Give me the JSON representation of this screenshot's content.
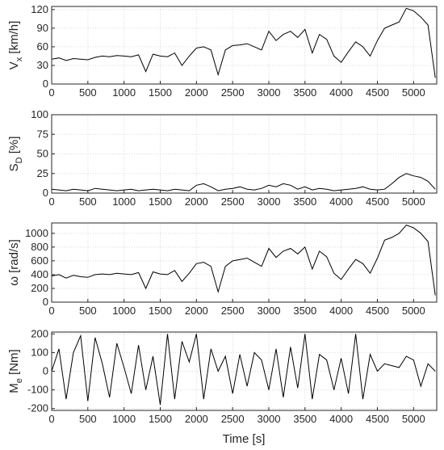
{
  "chart_data": {
    "type": "line",
    "xlabel": "Time [s]",
    "xlim": [
      0,
      5320
    ],
    "xticks": [
      0,
      500,
      1000,
      1500,
      2000,
      2500,
      3000,
      3500,
      4000,
      4500,
      5000
    ],
    "grid": true,
    "line_color": "#000000",
    "panels": [
      {
        "id": "vx",
        "ylabel_main": "V",
        "ylabel_sub": "x",
        "ylabel_unit": "[km/h]",
        "ylim": [
          0,
          125
        ],
        "yticks": [
          0,
          30,
          60,
          90,
          120
        ],
        "series": {
          "x": [
            0,
            100,
            200,
            300,
            400,
            500,
            600,
            700,
            800,
            900,
            1000,
            1100,
            1200,
            1300,
            1400,
            1500,
            1600,
            1700,
            1800,
            1900,
            2000,
            2100,
            2200,
            2300,
            2400,
            2500,
            2600,
            2700,
            2800,
            2900,
            3000,
            3100,
            3200,
            3300,
            3400,
            3500,
            3600,
            3700,
            3800,
            3900,
            4000,
            4100,
            4200,
            4300,
            4400,
            4500,
            4600,
            4700,
            4800,
            4900,
            5000,
            5100,
            5200,
            5300
          ],
          "y": [
            40,
            42,
            38,
            41,
            40,
            39,
            43,
            45,
            44,
            46,
            45,
            44,
            47,
            20,
            48,
            45,
            44,
            50,
            30,
            45,
            58,
            60,
            55,
            15,
            55,
            62,
            63,
            65,
            60,
            55,
            85,
            70,
            80,
            85,
            75,
            88,
            50,
            80,
            72,
            45,
            35,
            52,
            68,
            60,
            45,
            70,
            90,
            95,
            100,
            122,
            118,
            108,
            95,
            10
          ]
        }
      },
      {
        "id": "sd",
        "ylabel_main": "S",
        "ylabel_sub": "D",
        "ylabel_unit": "[%]",
        "ylim": [
          0,
          100
        ],
        "yticks": [
          0,
          25,
          50,
          75,
          100
        ],
        "series": {
          "x": [
            0,
            100,
            200,
            300,
            400,
            500,
            600,
            700,
            800,
            900,
            1000,
            1100,
            1200,
            1300,
            1400,
            1500,
            1600,
            1700,
            1800,
            1900,
            2000,
            2100,
            2200,
            2300,
            2400,
            2500,
            2600,
            2700,
            2800,
            2900,
            3000,
            3100,
            3200,
            3300,
            3400,
            3500,
            3600,
            3700,
            3800,
            3900,
            4000,
            4100,
            4200,
            4300,
            4400,
            4500,
            4600,
            4700,
            4800,
            4900,
            5000,
            5100,
            5200,
            5300
          ],
          "y": [
            5,
            4,
            3,
            5,
            4,
            3,
            6,
            5,
            4,
            3,
            4,
            5,
            3,
            4,
            5,
            4,
            3,
            5,
            4,
            3,
            10,
            12,
            8,
            3,
            5,
            6,
            8,
            5,
            4,
            6,
            10,
            8,
            12,
            10,
            5,
            8,
            4,
            6,
            5,
            3,
            4,
            5,
            6,
            8,
            5,
            4,
            5,
            12,
            20,
            25,
            22,
            20,
            15,
            5
          ]
        }
      },
      {
        "id": "omega",
        "ylabel_main": "ω",
        "ylabel_sub": "",
        "ylabel_unit": "[rad/s]",
        "ylim": [
          0,
          1150
        ],
        "yticks": [
          0,
          200,
          400,
          600,
          800,
          1000
        ],
        "series": {
          "x": [
            0,
            100,
            200,
            300,
            400,
            500,
            600,
            700,
            800,
            900,
            1000,
            1100,
            1200,
            1300,
            1400,
            1500,
            1600,
            1700,
            1800,
            1900,
            2000,
            2100,
            2200,
            2300,
            2400,
            2500,
            2600,
            2700,
            2800,
            2900,
            3000,
            3100,
            3200,
            3300,
            3400,
            3500,
            3600,
            3700,
            3800,
            3900,
            4000,
            4100,
            4200,
            4300,
            4400,
            4500,
            4600,
            4700,
            4800,
            4900,
            5000,
            5100,
            5200,
            5300
          ],
          "y": [
            380,
            400,
            350,
            390,
            370,
            360,
            400,
            410,
            400,
            420,
            410,
            400,
            430,
            200,
            440,
            410,
            400,
            460,
            300,
            420,
            560,
            580,
            520,
            150,
            520,
            600,
            620,
            640,
            580,
            520,
            780,
            650,
            740,
            780,
            700,
            800,
            480,
            740,
            660,
            420,
            330,
            480,
            620,
            560,
            420,
            640,
            900,
            940,
            1000,
            1120,
            1080,
            1000,
            880,
            100
          ]
        }
      },
      {
        "id": "me",
        "ylabel_main": "M",
        "ylabel_sub": "e",
        "ylabel_unit": "[Nm]",
        "ylim": [
          -210,
          210
        ],
        "yticks": [
          -200,
          -100,
          0,
          100,
          200
        ],
        "series": {
          "x": [
            0,
            100,
            200,
            300,
            400,
            500,
            600,
            700,
            800,
            900,
            1000,
            1100,
            1200,
            1300,
            1400,
            1500,
            1600,
            1700,
            1800,
            1900,
            2000,
            2100,
            2200,
            2300,
            2400,
            2500,
            2600,
            2700,
            2800,
            2900,
            3000,
            3100,
            3200,
            3300,
            3400,
            3500,
            3600,
            3700,
            3800,
            3900,
            4000,
            4100,
            4200,
            4300,
            4400,
            4500,
            4600,
            4700,
            4800,
            4900,
            5000,
            5100,
            5200,
            5300
          ],
          "y": [
            0,
            120,
            -150,
            100,
            190,
            -160,
            180,
            40,
            -140,
            150,
            20,
            -120,
            140,
            -100,
            80,
            -180,
            200,
            -150,
            160,
            50,
            200,
            -150,
            120,
            0,
            80,
            -120,
            90,
            -80,
            100,
            60,
            -100,
            120,
            -140,
            130,
            -90,
            200,
            -150,
            90,
            60,
            -100,
            70,
            -120,
            200,
            -150,
            90,
            0,
            40,
            30,
            20,
            80,
            60,
            -80,
            40,
            0
          ]
        }
      }
    ]
  }
}
